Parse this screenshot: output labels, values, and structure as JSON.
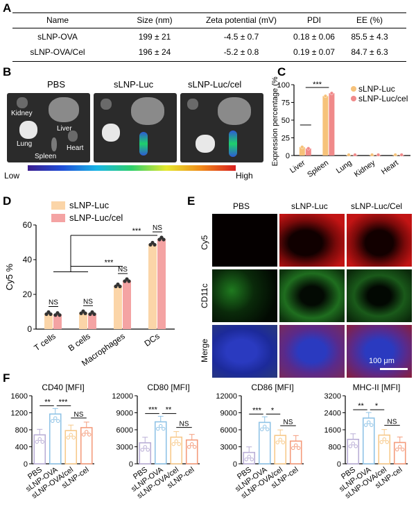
{
  "panels": {
    "a": "A",
    "b": "B",
    "c": "C",
    "d": "D",
    "e": "E",
    "f": "F"
  },
  "table": {
    "headers": [
      "Name",
      "Size (nm)",
      "Zeta potential (mV)",
      "PDI",
      "EE (%)"
    ],
    "rows": [
      [
        "sLNP-OVA",
        "199 ± 21",
        "-4.5 ± 0.7",
        "0.18 ± 0.06",
        "85.5 ± 4.3"
      ],
      [
        "sLNP-OVA/Cel",
        "196 ± 24",
        "-5.2 ± 0.8",
        "0.19 ± 0.07",
        "84.7 ± 6.3"
      ]
    ]
  },
  "ivis": {
    "titles": [
      "PBS",
      "sLNP-Luc",
      "sLNP-Luc/cel"
    ],
    "organ_labels": [
      "Kidney",
      "Liver",
      "Lung",
      "Spleen",
      "Heart"
    ],
    "scale_low": "Low",
    "scale_high": "High"
  },
  "microscopy": {
    "col_titles": [
      "PBS",
      "sLNP-Luc",
      "sLNP-Luc/Cel"
    ],
    "row_titles": [
      "Cy5",
      "CD11c",
      "Merge"
    ],
    "scale_bar": "100 μm"
  },
  "chart_data": [
    {
      "id": "C",
      "type": "bar",
      "ylabel": "Expression percentage (%)",
      "ylim": [
        0,
        100
      ],
      "yticks": [
        0,
        25,
        50,
        75,
        100
      ],
      "categories": [
        "Liver",
        "Spleen",
        "Lung",
        "Kidney",
        "Heart"
      ],
      "series": [
        {
          "name": "sLNP-Luc",
          "color": "#f6c27a",
          "values": [
            12,
            84,
            1,
            1,
            1
          ]
        },
        {
          "name": "sLNP-Luc/cel",
          "color": "#f08a8a",
          "values": [
            10,
            88,
            1,
            1,
            1
          ]
        }
      ],
      "significance": [
        "***"
      ]
    },
    {
      "id": "D",
      "type": "bar",
      "ylabel": "Cy5 %",
      "ylim": [
        0,
        60
      ],
      "yticks": [
        0,
        20,
        40,
        60
      ],
      "categories": [
        "T cells",
        "B cells",
        "Macrophages",
        "DCs"
      ],
      "series": [
        {
          "name": "sLNP-Luc",
          "color": "#fbd5a8",
          "values": [
            9,
            9.5,
            25,
            49
          ]
        },
        {
          "name": "sLNP-Luc/cel",
          "color": "#f4a3a3",
          "values": [
            8.5,
            9,
            28,
            52
          ]
        }
      ],
      "significance": [
        "NS",
        "NS",
        "NS",
        "NS",
        "***",
        "***"
      ]
    },
    {
      "id": "F1",
      "type": "bar",
      "title": "CD40 [MFI]",
      "ylim": [
        0,
        1600
      ],
      "yticks": [
        0,
        400,
        800,
        1200,
        1600
      ],
      "categories": [
        "PBS",
        "sLNP-OVA",
        "sLNP-OVA/cel",
        "sLNP-cel"
      ],
      "values": [
        680,
        1170,
        780,
        850
      ],
      "colors": [
        "#b9aed6",
        "#8fc3e6",
        "#f7c98a",
        "#f49c7c"
      ],
      "significance": [
        "**",
        "***",
        "NS"
      ]
    },
    {
      "id": "F2",
      "type": "bar",
      "title": "CD80 [MFI]",
      "ylim": [
        0,
        12000
      ],
      "yticks": [
        0,
        3000,
        6000,
        9000,
        12000
      ],
      "categories": [
        "PBS",
        "sLNP-OVA",
        "sLNP-OVA/cel",
        "sLNP-cel"
      ],
      "values": [
        3700,
        7400,
        4700,
        4200
      ],
      "colors": [
        "#b9aed6",
        "#8fc3e6",
        "#f7c98a",
        "#f49c7c"
      ],
      "significance": [
        "***",
        "**",
        "NS"
      ]
    },
    {
      "id": "F3",
      "type": "bar",
      "title": "CD86 [MFI]",
      "ylim": [
        0,
        12000
      ],
      "yticks": [
        0,
        3000,
        6000,
        9000,
        12000
      ],
      "categories": [
        "PBS",
        "sLNP-OVA",
        "sLNP-OVA/cel",
        "sLNP-cel"
      ],
      "values": [
        2000,
        7300,
        5000,
        4000
      ],
      "colors": [
        "#b9aed6",
        "#8fc3e6",
        "#f7c98a",
        "#f49c7c"
      ],
      "significance": [
        "***",
        "*",
        "NS"
      ]
    },
    {
      "id": "F4",
      "type": "bar",
      "title": "MHC-II [MFI]",
      "ylim": [
        0,
        3200
      ],
      "yticks": [
        0,
        800,
        1600,
        2400,
        3200
      ],
      "categories": [
        "PBS",
        "sLNP-OVA",
        "sLNP-OVA/cel",
        "sLNP-cel"
      ],
      "values": [
        1150,
        2150,
        1350,
        1000
      ],
      "colors": [
        "#b9aed6",
        "#8fc3e6",
        "#f7c98a",
        "#f49c7c"
      ],
      "significance": [
        "**",
        "*",
        "NS"
      ]
    }
  ]
}
